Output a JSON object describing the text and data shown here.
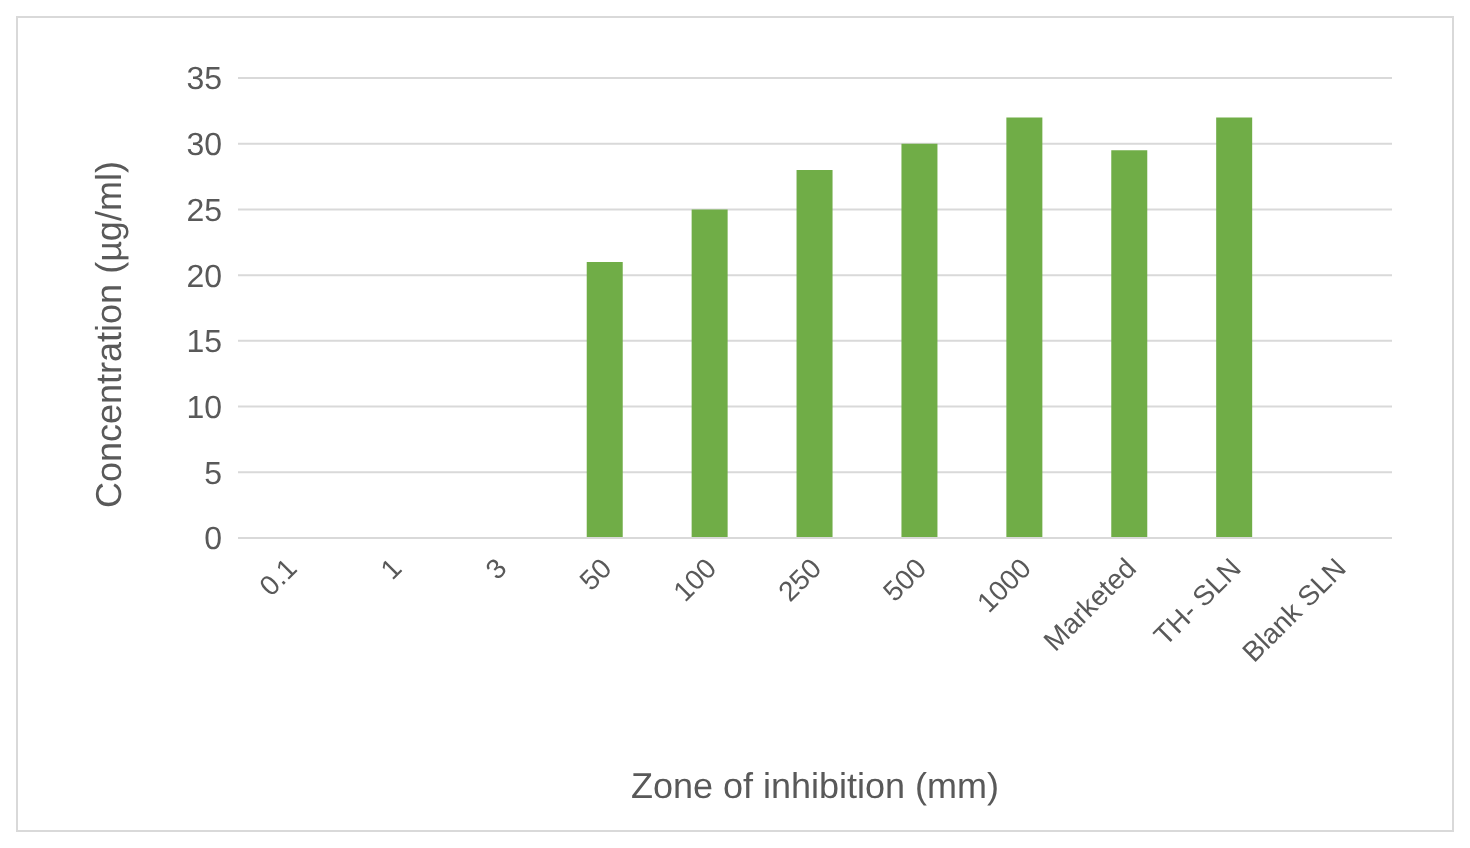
{
  "chart_data": {
    "type": "bar",
    "xlabel": "Zone of inhibition (mm)",
    "ylabel": "Concentration (µg/ml)",
    "categories": [
      "0.1",
      "1",
      "3",
      "50",
      "100",
      "250",
      "500",
      "1000",
      "Marketed",
      "TH- SLN",
      "Blank SLN"
    ],
    "values": [
      0,
      0,
      0,
      21,
      25,
      28,
      30,
      32,
      29.5,
      32,
      0
    ],
    "color": "#70ad47",
    "ylim": [
      0,
      35
    ],
    "yticks": [
      0,
      5,
      10,
      15,
      20,
      25,
      30,
      35
    ],
    "grid": "y"
  }
}
